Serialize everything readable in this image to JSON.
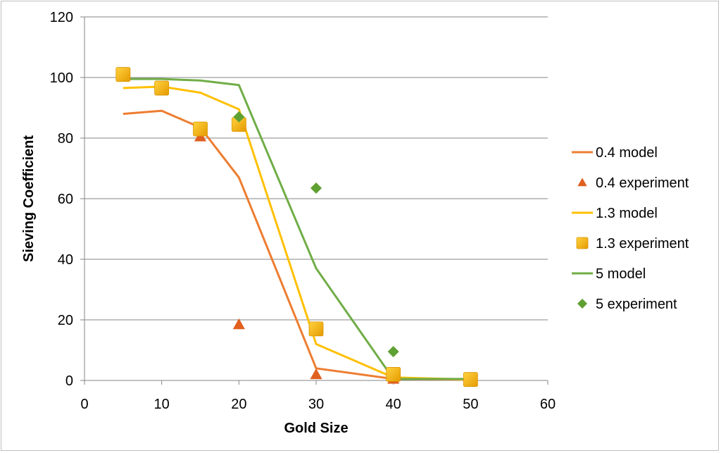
{
  "chart_data": {
    "type": "scatter",
    "xlabel": "Gold Size",
    "ylabel": "Sieving Coefficient",
    "xlim": [
      0,
      60
    ],
    "ylim": [
      0,
      120
    ],
    "x_ticks": [
      "0",
      "10",
      "20",
      "30",
      "40",
      "50",
      "60"
    ],
    "y_ticks": [
      "0",
      "20",
      "40",
      "60",
      "80",
      "100",
      "120"
    ],
    "grid": "horizontal",
    "legend_position": "right",
    "series": [
      {
        "name": "0.4 model",
        "kind": "line",
        "color": "#ED7D31",
        "x": [
          5,
          10,
          15,
          20,
          30,
          40,
          50
        ],
        "y": [
          88,
          89,
          83.5,
          67,
          4,
          0.5,
          0.3
        ]
      },
      {
        "name": "0.4 experiment",
        "kind": "marker",
        "marker": "triangle",
        "color": "#E06020",
        "x": [
          15,
          20,
          30,
          40
        ],
        "y": [
          80.5,
          18.5,
          2,
          0.5
        ]
      },
      {
        "name": "1.3 model",
        "kind": "line",
        "color": "#FFC000",
        "x": [
          5,
          10,
          15,
          20,
          30,
          40,
          50
        ],
        "y": [
          96.5,
          97,
          95,
          89.5,
          12,
          1,
          0.3
        ]
      },
      {
        "name": "1.3 experiment",
        "kind": "marker",
        "marker": "square",
        "color": "#F5B000",
        "x": [
          5,
          10,
          15,
          20,
          30,
          40,
          50
        ],
        "y": [
          101,
          96.5,
          83,
          84.5,
          17,
          2,
          0.3
        ]
      },
      {
        "name": "5 model",
        "kind": "line",
        "color": "#70AD47",
        "x": [
          5,
          10,
          15,
          20,
          30,
          40,
          50
        ],
        "y": [
          99.5,
          99.5,
          99,
          97.5,
          37,
          0.5,
          0.5
        ]
      },
      {
        "name": "5 experiment",
        "kind": "marker",
        "marker": "diamond",
        "color": "#5FA032",
        "x": [
          20,
          30,
          40
        ],
        "y": [
          87,
          63.5,
          9.5
        ]
      }
    ]
  }
}
